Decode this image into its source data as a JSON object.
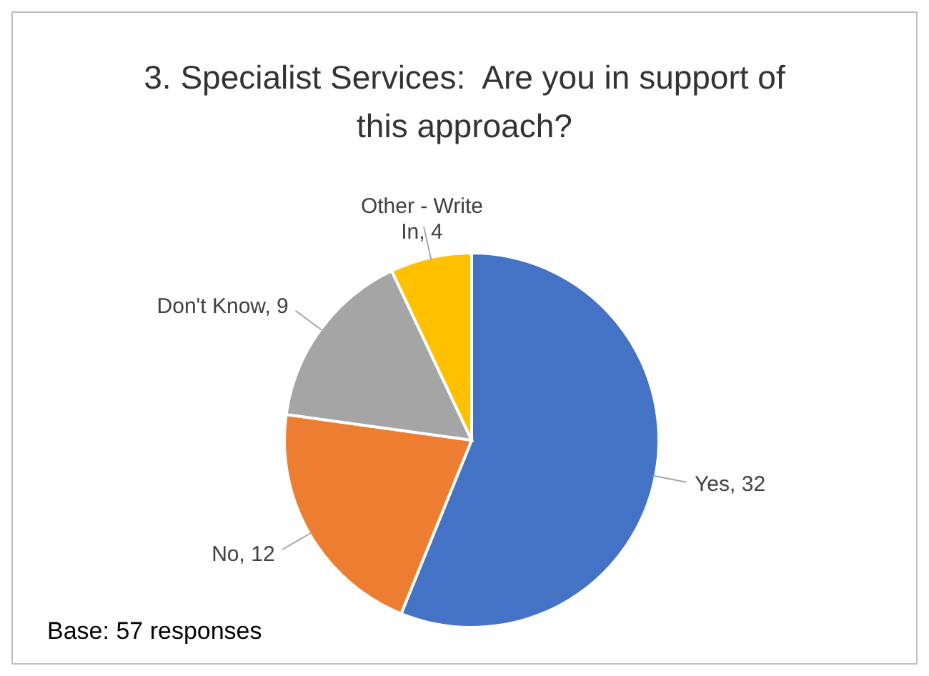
{
  "chart_data": {
    "type": "pie",
    "title": "3. Specialist Services:  Are you in support of this approach?",
    "categories": [
      "Yes",
      "No",
      "Don't Know",
      "Other - Write In"
    ],
    "values": [
      32,
      12,
      9,
      4
    ],
    "colors": [
      "#4472c4",
      "#ed7d31",
      "#a5a5a5",
      "#ffc000"
    ],
    "value_labels": [
      ", 32",
      ", 12",
      ", 9",
      ", 4"
    ],
    "legend": false,
    "annotations": [
      "Base: 57 responses"
    ]
  }
}
